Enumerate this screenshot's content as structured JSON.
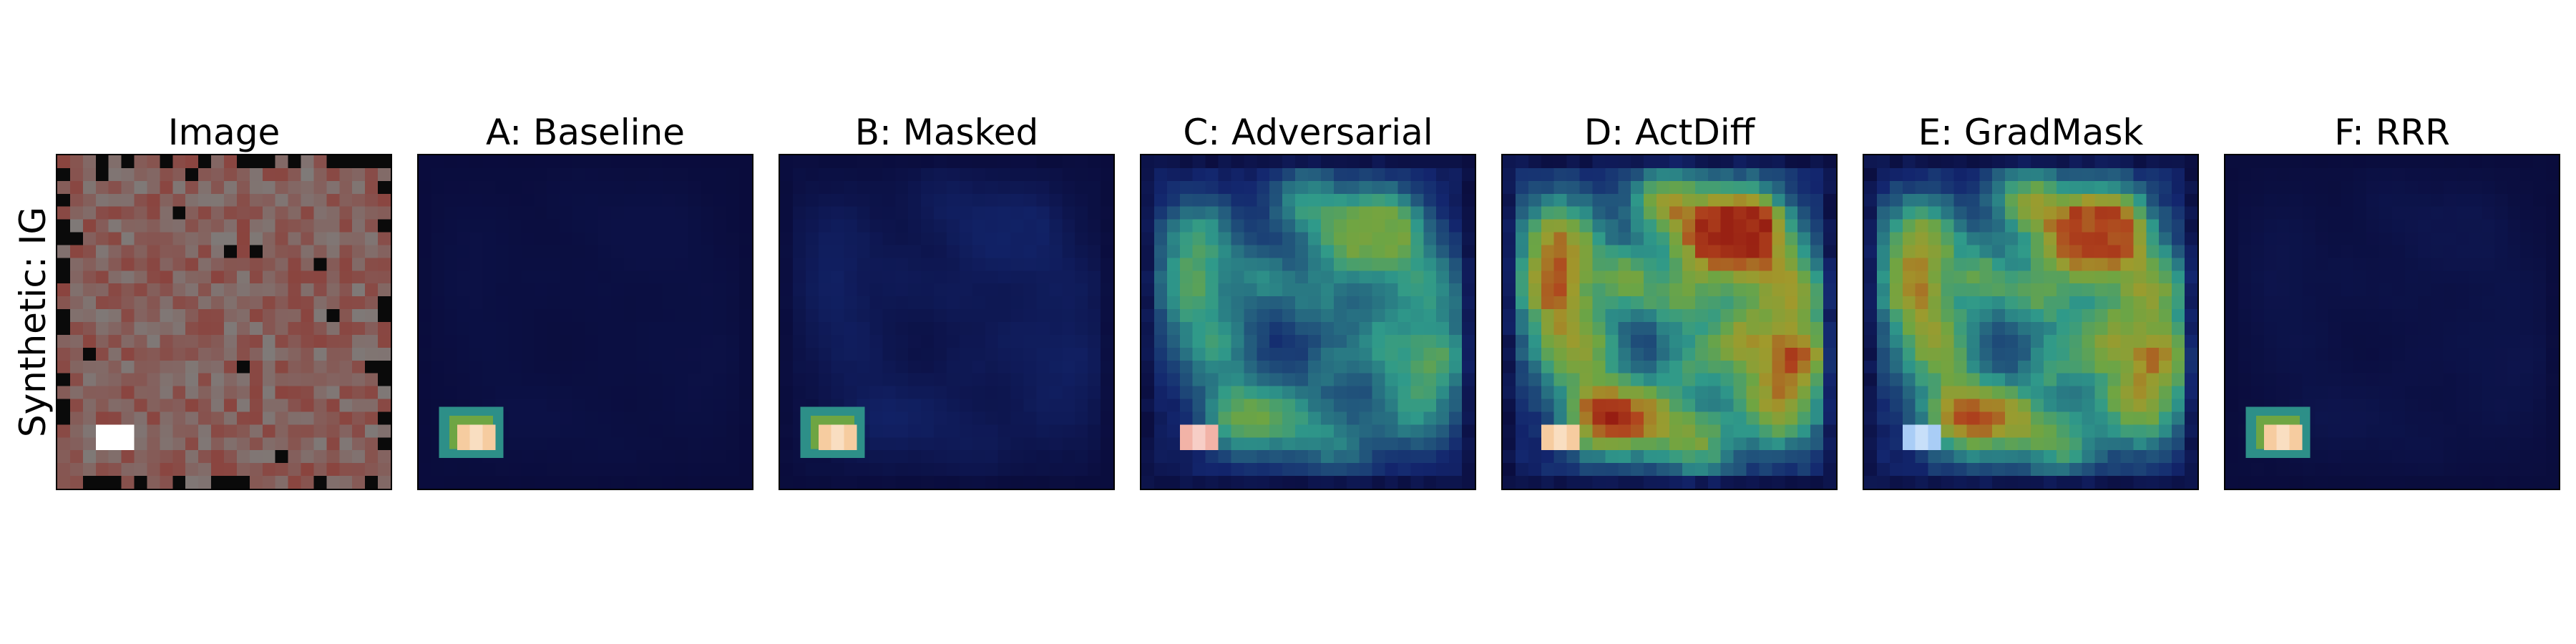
{
  "figure": {
    "row_label": "Synthetic: IG",
    "panels": [
      {
        "title": "Image",
        "kind": "image"
      },
      {
        "title": "A: Baseline",
        "kind": "attribution",
        "intensity": 0.03,
        "spot_color": "#f6cca0"
      },
      {
        "title": "B: Masked",
        "kind": "attribution",
        "intensity": 0.12,
        "spot_color": "#f6cca0"
      },
      {
        "title": "C: Adversarial",
        "kind": "attribution",
        "intensity": 0.62,
        "spot_color": "#f2b3a7"
      },
      {
        "title": "D: ActDiff",
        "kind": "attribution",
        "intensity": 0.92,
        "spot_color": "#f6cca0"
      },
      {
        "title": "E: GradMask",
        "kind": "attribution",
        "intensity": 0.86,
        "spot_color": "#a9cdf6"
      },
      {
        "title": "F: RRR",
        "kind": "attribution",
        "intensity": 0.05,
        "spot_color": "#f6cca0"
      }
    ]
  },
  "colors": {
    "colormap_low": "#0a0c3c",
    "colormap_mid": "#2f9a8a",
    "colormap_high": "#8b0c0c",
    "image_gray": "#7f7a78",
    "image_red": "#8c3a34",
    "image_black": "#0a0a0a",
    "image_patch": "#ffffff"
  }
}
